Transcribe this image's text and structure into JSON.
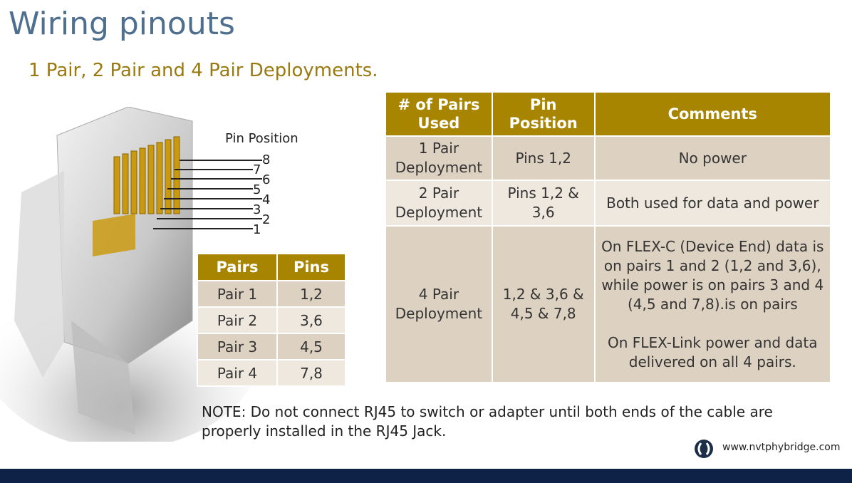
{
  "slide": {
    "title": "Wiring pinouts",
    "subtitle": "1 Pair, 2 Pair and 4 Pair Deployments."
  },
  "connector_diagram": {
    "label": "Pin Position",
    "pins": [
      "8",
      "7",
      "6",
      "5",
      "4",
      "3",
      "2",
      "1"
    ]
  },
  "pairs_table": {
    "headers": [
      "Pairs",
      "Pins"
    ],
    "rows": [
      [
        "Pair 1",
        "1,2"
      ],
      [
        "Pair 2",
        "3,6"
      ],
      [
        "Pair 3",
        "4,5"
      ],
      [
        "Pair 4",
        "7,8"
      ]
    ]
  },
  "main_table": {
    "headers": [
      "# of Pairs Used",
      "Pin Position",
      "Comments"
    ],
    "rows": [
      {
        "pairs": "1 Pair Deployment",
        "pins": "Pins 1,2",
        "comment": "No power"
      },
      {
        "pairs": "2 Pair Deployment",
        "pins": "Pins 1,2 & 3,6",
        "comment": "Both used for data and power"
      },
      {
        "pairs": "4 Pair Deployment",
        "pins": "1,2 & 3,6 & 4,5 & 7,8",
        "comment": "On FLEX-C (Device End) data is on pairs 1 and 2 (1,2 and 3,6), while power is on pairs 3 and 4 (4,5 and 7,8).is on pairs",
        "comment2": "On FLEX-Link power and data delivered on all 4 pairs."
      }
    ]
  },
  "note": {
    "label": "NOTE",
    "text": ":  Do not connect RJ45 to switch or adapter until both ends of the cable are properly installed in the RJ45 Jack."
  },
  "footer": {
    "url": "www.nvtphybridge.com"
  },
  "colors": {
    "header_gold": "#a88500",
    "title_blue": "#4f6f8f",
    "row_dark": "#ddd1c1",
    "row_light": "#eee8df",
    "bar_navy": "#0e2248"
  }
}
